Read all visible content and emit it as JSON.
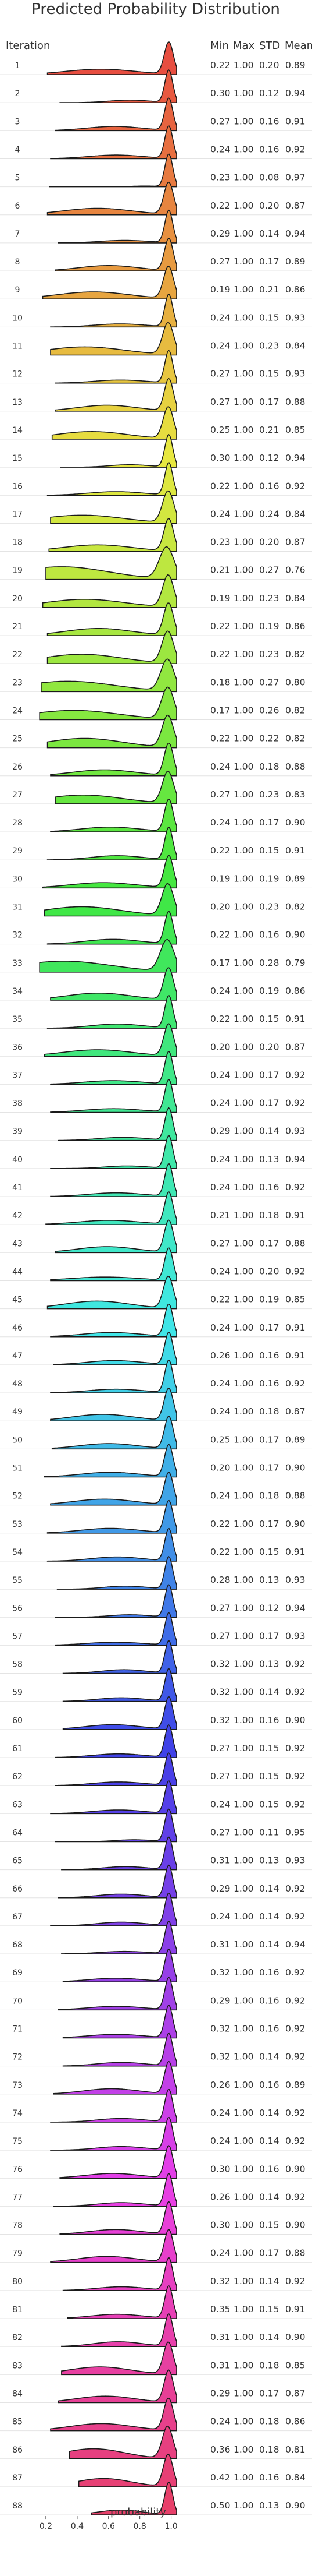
{
  "chart_data": {
    "type": "ridgeline",
    "title": "Predicted Probability Distribution",
    "ylabel": "Iteration",
    "xlabel": "probability",
    "xlim": [
      0.1,
      1.15
    ],
    "xticks": [
      "0.2",
      "0.4",
      "0.6",
      "0.8",
      "1.0"
    ],
    "xtick_values": [
      0.2,
      0.4,
      0.6,
      0.8,
      1.0
    ],
    "columns": [
      "Min",
      "Max",
      "STD",
      "Mean"
    ],
    "iterations": [
      1,
      2,
      3,
      4,
      5,
      6,
      7,
      8,
      9,
      10,
      11,
      12,
      13,
      14,
      15,
      16,
      17,
      18,
      19,
      20,
      21,
      22,
      23,
      24,
      25,
      26,
      27,
      28,
      29,
      30,
      31,
      32,
      33,
      34,
      35,
      36,
      37,
      38,
      39,
      40,
      41,
      42,
      43,
      44,
      45,
      46,
      47,
      48,
      49,
      50,
      51,
      52,
      53,
      54,
      55,
      56,
      57,
      58,
      59,
      60,
      61,
      62,
      63,
      64,
      65,
      66,
      67,
      68,
      69,
      70,
      71,
      72,
      73,
      74,
      75,
      76,
      77,
      78,
      79,
      80,
      81,
      82,
      83,
      84,
      85,
      86,
      87,
      88
    ],
    "min": [
      "0.22",
      "0.30",
      "0.27",
      "0.24",
      "0.23",
      "0.22",
      "0.29",
      "0.27",
      "0.19",
      "0.24",
      "0.24",
      "0.27",
      "0.27",
      "0.25",
      "0.30",
      "0.22",
      "0.24",
      "0.23",
      "0.21",
      "0.19",
      "0.22",
      "0.22",
      "0.18",
      "0.17",
      "0.22",
      "0.24",
      "0.27",
      "0.24",
      "0.22",
      "0.19",
      "0.20",
      "0.22",
      "0.17",
      "0.24",
      "0.22",
      "0.20",
      "0.24",
      "0.24",
      "0.29",
      "0.24",
      "0.24",
      "0.21",
      "0.27",
      "0.24",
      "0.22",
      "0.24",
      "0.26",
      "0.24",
      "0.24",
      "0.25",
      "0.20",
      "0.24",
      "0.22",
      "0.22",
      "0.28",
      "0.27",
      "0.27",
      "0.32",
      "0.32",
      "0.32",
      "0.27",
      "0.27",
      "0.24",
      "0.27",
      "0.31",
      "0.29",
      "0.24",
      "0.31",
      "0.32",
      "0.29",
      "0.32",
      "0.32",
      "0.26",
      "0.24",
      "0.24",
      "0.30",
      "0.26",
      "0.30",
      "0.24",
      "0.32",
      "0.35",
      "0.31",
      "0.31",
      "0.29",
      "0.24",
      "0.36",
      "0.42",
      "0.50"
    ],
    "max": [
      "1.00",
      "1.00",
      "1.00",
      "1.00",
      "1.00",
      "1.00",
      "1.00",
      "1.00",
      "1.00",
      "1.00",
      "1.00",
      "1.00",
      "1.00",
      "1.00",
      "1.00",
      "1.00",
      "1.00",
      "1.00",
      "1.00",
      "1.00",
      "1.00",
      "1.00",
      "1.00",
      "1.00",
      "1.00",
      "1.00",
      "1.00",
      "1.00",
      "1.00",
      "1.00",
      "1.00",
      "1.00",
      "1.00",
      "1.00",
      "1.00",
      "1.00",
      "1.00",
      "1.00",
      "1.00",
      "1.00",
      "1.00",
      "1.00",
      "1.00",
      "1.00",
      "1.00",
      "1.00",
      "1.00",
      "1.00",
      "1.00",
      "1.00",
      "1.00",
      "1.00",
      "1.00",
      "1.00",
      "1.00",
      "1.00",
      "1.00",
      "1.00",
      "1.00",
      "1.00",
      "1.00",
      "1.00",
      "1.00",
      "1.00",
      "1.00",
      "1.00",
      "1.00",
      "1.00",
      "1.00",
      "1.00",
      "1.00",
      "1.00",
      "1.00",
      "1.00",
      "1.00",
      "1.00",
      "1.00",
      "1.00",
      "1.00",
      "1.00",
      "1.00",
      "1.00",
      "1.00",
      "1.00",
      "1.00",
      "1.00",
      "1.00",
      "1.00"
    ],
    "std": [
      "0.20",
      "0.12",
      "0.16",
      "0.16",
      "0.08",
      "0.20",
      "0.14",
      "0.17",
      "0.21",
      "0.15",
      "0.23",
      "0.15",
      "0.17",
      "0.21",
      "0.12",
      "0.16",
      "0.24",
      "0.20",
      "0.27",
      "0.23",
      "0.19",
      "0.23",
      "0.27",
      "0.26",
      "0.22",
      "0.18",
      "0.23",
      "0.17",
      "0.15",
      "0.19",
      "0.23",
      "0.16",
      "0.28",
      "0.19",
      "0.15",
      "0.20",
      "0.17",
      "0.17",
      "0.14",
      "0.13",
      "0.16",
      "0.18",
      "0.17",
      "0.20",
      "0.19",
      "0.17",
      "0.16",
      "0.16",
      "0.18",
      "0.17",
      "0.17",
      "0.18",
      "0.17",
      "0.15",
      "0.13",
      "0.12",
      "0.17",
      "0.13",
      "0.14",
      "0.16",
      "0.15",
      "0.15",
      "0.15",
      "0.11",
      "0.13",
      "0.14",
      "0.14",
      "0.14",
      "0.16",
      "0.16",
      "0.16",
      "0.14",
      "0.16",
      "0.14",
      "0.14",
      "0.16",
      "0.14",
      "0.15",
      "0.17",
      "0.14",
      "0.15",
      "0.14",
      "0.18",
      "0.17",
      "0.18",
      "0.18",
      "0.16",
      "0.13"
    ],
    "mean": [
      "0.89",
      "0.94",
      "0.91",
      "0.92",
      "0.97",
      "0.87",
      "0.94",
      "0.89",
      "0.86",
      "0.93",
      "0.84",
      "0.93",
      "0.88",
      "0.85",
      "0.94",
      "0.92",
      "0.84",
      "0.87",
      "0.76",
      "0.84",
      "0.86",
      "0.82",
      "0.80",
      "0.82",
      "0.82",
      "0.88",
      "0.83",
      "0.90",
      "0.91",
      "0.89",
      "0.82",
      "0.90",
      "0.79",
      "0.86",
      "0.91",
      "0.87",
      "0.92",
      "0.92",
      "0.93",
      "0.94",
      "0.92",
      "0.91",
      "0.88",
      "0.92",
      "0.85",
      "0.91",
      "0.91",
      "0.92",
      "0.87",
      "0.89",
      "0.90",
      "0.88",
      "0.90",
      "0.91",
      "0.93",
      "0.94",
      "0.93",
      "0.92",
      "0.92",
      "0.90",
      "0.92",
      "0.92",
      "0.92",
      "0.95",
      "0.93",
      "0.92",
      "0.92",
      "0.94",
      "0.92",
      "0.92",
      "0.92",
      "0.92",
      "0.89",
      "0.92",
      "0.92",
      "0.90",
      "0.92",
      "0.90",
      "0.88",
      "0.92",
      "0.91",
      "0.90",
      "0.85",
      "0.87",
      "0.86",
      "0.81",
      "0.84",
      "0.90"
    ]
  }
}
